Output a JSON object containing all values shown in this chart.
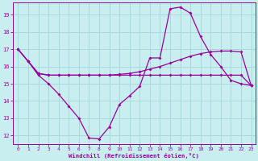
{
  "background_color": "#c8eef0",
  "grid_color": "#a8d8dc",
  "line_color": "#990099",
  "xlabel": "Windchill (Refroidissement éolien,°C)",
  "xlim_min": -0.5,
  "xlim_max": 23.4,
  "ylim_min": 11.5,
  "ylim_max": 19.7,
  "xticks": [
    0,
    1,
    2,
    3,
    4,
    5,
    6,
    7,
    8,
    9,
    10,
    11,
    12,
    13,
    14,
    15,
    16,
    17,
    18,
    19,
    20,
    21,
    22,
    23
  ],
  "yticks": [
    12,
    13,
    14,
    15,
    16,
    17,
    18,
    19
  ],
  "curve1_x": [
    0,
    1,
    2,
    3,
    4,
    5,
    6,
    7,
    8,
    9,
    10,
    11,
    12,
    13,
    14,
    15,
    16,
    17,
    18,
    19,
    20,
    21,
    22,
    23
  ],
  "curve1_y": [
    17.0,
    16.3,
    15.5,
    15.0,
    14.4,
    13.7,
    13.0,
    11.85,
    11.8,
    12.5,
    13.8,
    14.3,
    14.85,
    16.5,
    16.5,
    19.35,
    19.45,
    19.1,
    17.75,
    16.7,
    16.0,
    15.2,
    15.0,
    14.9
  ],
  "curve2_x": [
    0,
    1,
    2,
    3,
    4,
    5,
    6,
    7,
    8,
    9,
    10,
    11,
    12,
    13,
    14,
    15,
    16,
    17,
    18,
    19,
    20,
    21,
    22,
    23
  ],
  "curve2_y": [
    17.0,
    16.3,
    15.6,
    15.5,
    15.5,
    15.5,
    15.5,
    15.5,
    15.5,
    15.5,
    15.55,
    15.6,
    15.7,
    15.85,
    16.0,
    16.2,
    16.4,
    16.6,
    16.75,
    16.85,
    16.9,
    16.9,
    16.85,
    14.9
  ],
  "curve3_x": [
    0,
    1,
    2,
    3,
    4,
    5,
    6,
    7,
    8,
    9,
    10,
    11,
    12,
    13,
    14,
    15,
    16,
    17,
    18,
    19,
    20,
    21,
    22,
    23
  ],
  "curve3_y": [
    17.0,
    16.3,
    15.6,
    15.5,
    15.5,
    15.5,
    15.5,
    15.5,
    15.5,
    15.5,
    15.5,
    15.5,
    15.5,
    15.5,
    15.5,
    15.5,
    15.5,
    15.5,
    15.5,
    15.5,
    15.5,
    15.5,
    15.5,
    14.9
  ],
  "marker": "D",
  "markersize": 2.0,
  "linewidth": 0.9
}
